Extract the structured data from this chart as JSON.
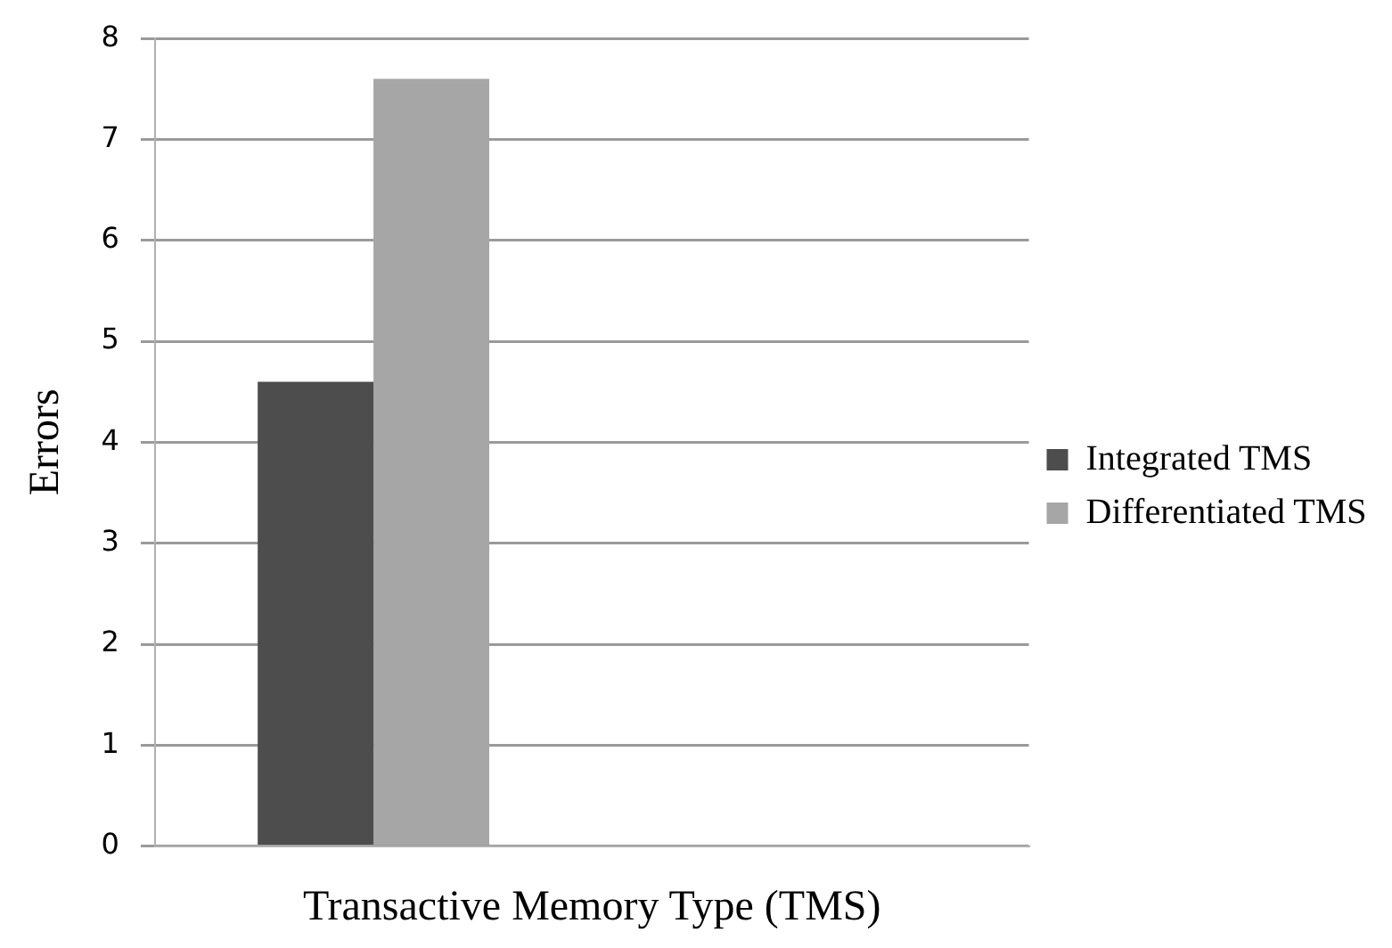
{
  "chart_data": {
    "type": "bar",
    "xlabel": "Transactive Memory Type (TMS)",
    "ylabel": "Errors",
    "categories": [
      null,
      null
    ],
    "series": [
      {
        "name": "Integrated TMS",
        "color": "#4d4d4d",
        "values": [
          4.6,
          null
        ]
      },
      {
        "name": "Differentiated TMS",
        "color": "#a6a6a6",
        "values": [
          7.6,
          null
        ]
      }
    ],
    "ylim": [
      0,
      8
    ],
    "yticks": [
      0,
      1,
      2,
      3,
      4,
      5,
      6,
      7,
      8
    ],
    "grid": "y",
    "legend": "right"
  }
}
